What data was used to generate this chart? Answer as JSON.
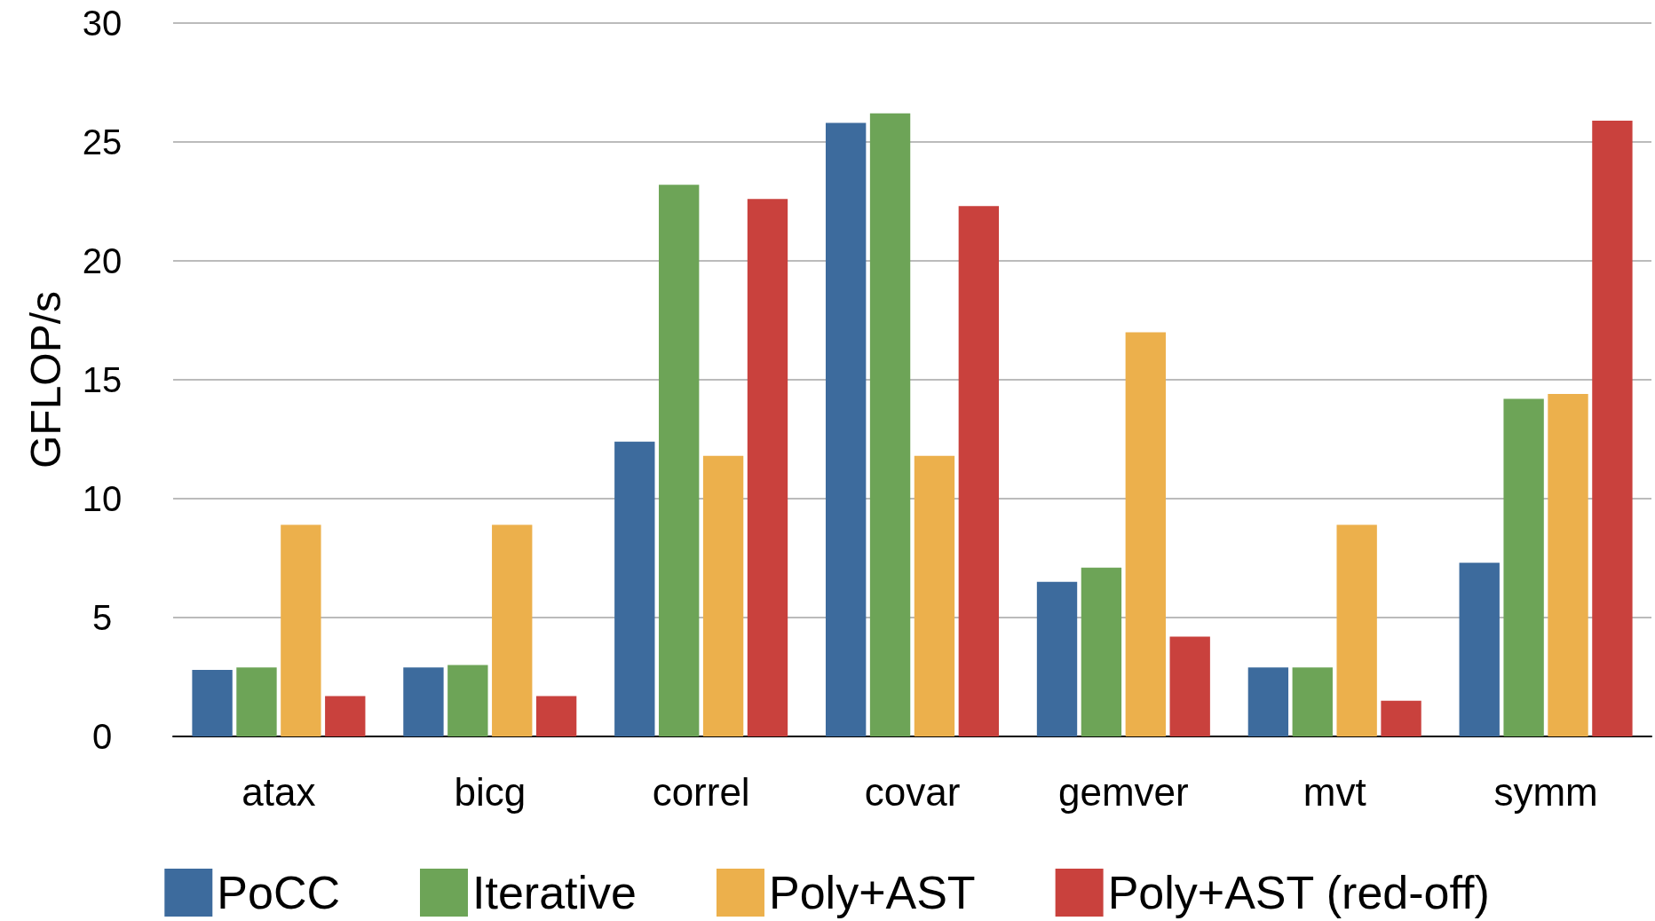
{
  "chart_data": {
    "type": "bar",
    "ylabel": "GFLOP/s",
    "categories": [
      "atax",
      "bicg",
      "correl",
      "covar",
      "gemver",
      "mvt",
      "symm"
    ],
    "series": [
      {
        "name": "PoCC",
        "color": "#3d6b9d",
        "values": [
          2.8,
          2.9,
          12.4,
          25.8,
          6.5,
          2.9,
          7.3
        ]
      },
      {
        "name": "Iterative",
        "color": "#6da457",
        "values": [
          2.9,
          3.0,
          23.2,
          26.2,
          7.1,
          2.9,
          14.2
        ]
      },
      {
        "name": "Poly+AST",
        "color": "#ecb04c",
        "values": [
          8.9,
          8.9,
          11.8,
          11.8,
          17.0,
          8.9,
          14.4
        ]
      },
      {
        "name": "Poly+AST (red-off)",
        "color": "#c9413d",
        "values": [
          1.7,
          1.7,
          22.6,
          22.3,
          4.2,
          1.5,
          25.9
        ]
      }
    ],
    "ylim": [
      0,
      30
    ],
    "yticks": [
      0,
      5,
      10,
      15,
      20,
      25,
      30
    ],
    "grid": "y",
    "legend": "bottom"
  }
}
